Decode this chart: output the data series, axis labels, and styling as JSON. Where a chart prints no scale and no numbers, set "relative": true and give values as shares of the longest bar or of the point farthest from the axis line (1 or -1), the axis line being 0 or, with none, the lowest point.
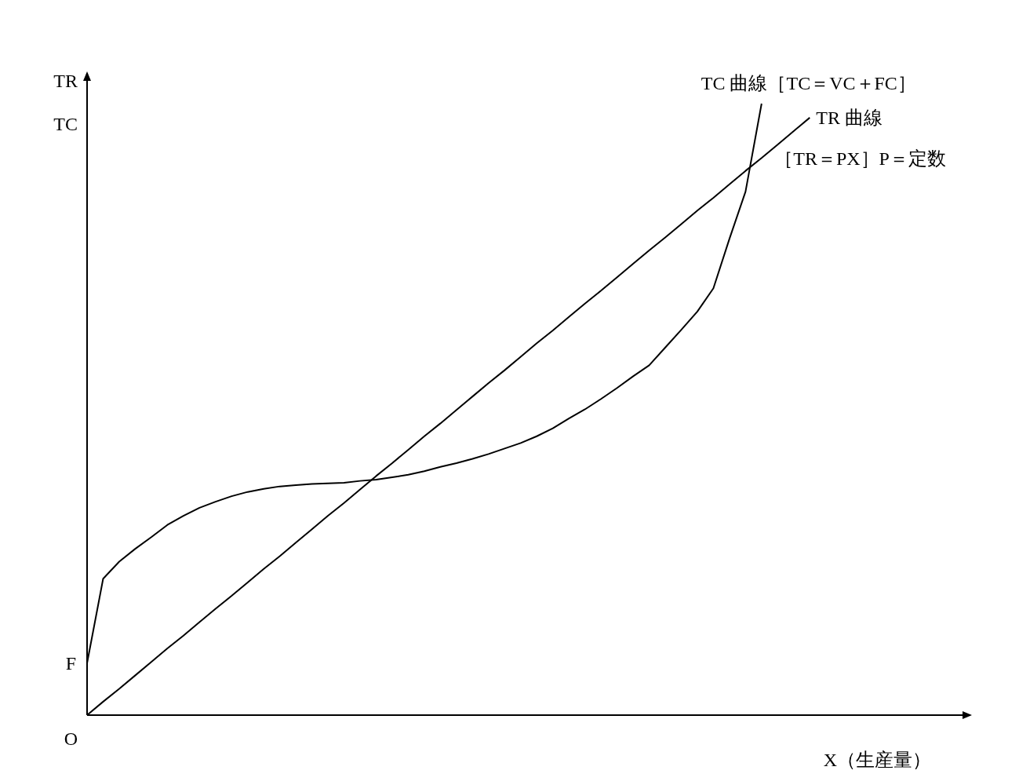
{
  "chart_data": {
    "type": "line",
    "relative": true,
    "xlabel": "X（生産量）",
    "ylabel": "TR\nTC",
    "categories": [
      null,
      null,
      null,
      null,
      null,
      null,
      null,
      null,
      null,
      null,
      null,
      null,
      null,
      null,
      null,
      null,
      null,
      null,
      null,
      null,
      null,
      null,
      null,
      null,
      null,
      null,
      null,
      null,
      null,
      null,
      null,
      null,
      null,
      null,
      null,
      null,
      null,
      null,
      null,
      null,
      null,
      null,
      null,
      null,
      null,
      null,
      null,
      null,
      null,
      null,
      null,
      null,
      null,
      null,
      null,
      null
    ],
    "series": [
      {
        "name": "TC 曲線［TC＝VC＋FC］",
        "color": "#000000",
        "values": [
          0.085,
          0.223,
          0.251,
          0.272,
          0.291,
          0.311,
          0.326,
          0.339,
          0.349,
          0.358,
          0.365,
          0.37,
          0.374,
          0.376,
          0.378,
          0.379,
          0.38,
          0.383,
          0.385,
          0.389,
          0.393,
          0.399,
          0.406,
          0.412,
          0.419,
          0.427,
          0.436,
          0.445,
          0.456,
          0.469,
          0.485,
          0.5,
          0.517,
          0.535,
          0.554,
          0.572,
          0.601,
          0.63,
          0.66,
          0.698,
          0.779,
          0.856,
          1,
          null,
          null,
          null,
          null,
          null,
          null,
          null,
          null,
          null,
          null,
          null,
          null,
          null
        ]
      },
      {
        "name": "TR 曲線",
        "color": "#000000",
        "values": [
          0,
          0.022,
          0.043,
          0.065,
          0.087,
          0.109,
          0.13,
          0.152,
          0.174,
          0.195,
          0.217,
          0.239,
          0.26,
          0.282,
          0.304,
          0.326,
          0.347,
          0.369,
          0.391,
          0.412,
          0.434,
          0.456,
          0.477,
          0.499,
          0.521,
          0.543,
          0.564,
          0.586,
          0.608,
          0.629,
          0.651,
          0.673,
          0.694,
          0.716,
          0.738,
          0.76,
          0.781,
          0.803,
          0.825,
          0.846,
          0.868,
          0.89,
          0.911,
          0.933,
          0.955,
          0.977,
          null,
          null,
          null,
          null,
          null,
          null,
          null,
          null,
          null,
          null
        ]
      }
    ],
    "annotations": [
      "［TR＝PX］P＝定数",
      "F",
      "O"
    ],
    "legend": false,
    "grid": false,
    "marker": "none",
    "line_style": "solid"
  }
}
